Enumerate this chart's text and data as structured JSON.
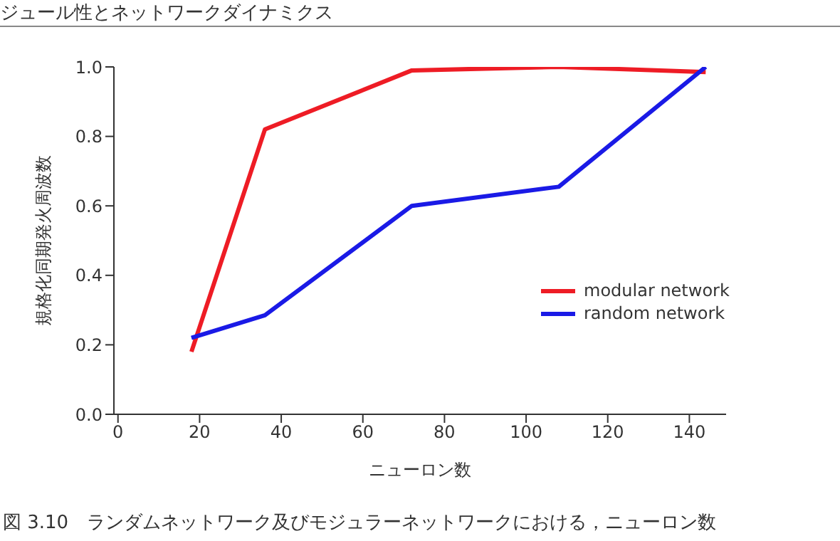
{
  "chart_data": {
    "type": "line",
    "xlabel": "ニューロン数",
    "ylabel": "規格化同期発火周波数",
    "annotations": [
      "ジュール性とネットワークダイナミクス",
      "図 3.10　ランダムネットワーク及びモジュラーネットワークにおける，ニューロン数"
    ],
    "x": [
      18,
      36,
      72,
      108,
      144
    ],
    "series": [
      {
        "name": "modular network",
        "color": "#ee1c25",
        "values": [
          0.18,
          0.82,
          0.99,
          1.0,
          0.985
        ]
      },
      {
        "name": "random network",
        "color": "#1a1ae6",
        "values": [
          0.22,
          0.285,
          0.6,
          0.655,
          1.0
        ]
      }
    ],
    "xlim": [
      -1,
      149
    ],
    "xticks": [
      0,
      20,
      40,
      60,
      80,
      100,
      120,
      140
    ],
    "ylim": [
      0,
      1
    ],
    "yticks": [
      {
        "value": 0,
        "label": "0.0"
      },
      {
        "value": 0.2,
        "label": "0.2"
      },
      {
        "value": 0.4,
        "label": "0.4"
      },
      {
        "value": 0.6,
        "label": "0.6"
      },
      {
        "value": 0.8,
        "label": "0.8"
      },
      {
        "value": 1,
        "label": "1.0"
      }
    ],
    "legend": "right",
    "grid": false,
    "marker": "none",
    "line_style": "solid"
  }
}
